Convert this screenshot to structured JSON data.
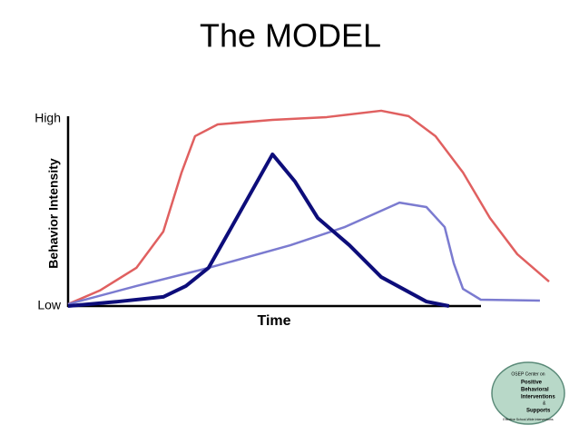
{
  "chart_data": {
    "type": "line",
    "title": "The MODEL",
    "x_label": "Time",
    "y_label": "Behavior Intensity",
    "xlim": [
      0,
      100
    ],
    "ylim": [
      0,
      100
    ],
    "yticks": [
      {
        "value": 0,
        "label": "Low"
      },
      {
        "value": 100,
        "label": "High"
      }
    ],
    "series": [
      {
        "color": "#e06060",
        "x": [
          0,
          6.6,
          14.2,
          19.8,
          23.6,
          26.4,
          31.1,
          42.5,
          53.8,
          65.1,
          70.8,
          76.4,
          82.1,
          87.7,
          93.4,
          100
        ],
        "values": [
          1,
          8.3,
          20.4,
          39.8,
          71.4,
          90.8,
          97.1,
          99.5,
          101,
          104.4,
          101.5,
          90.8,
          71.4,
          47.1,
          27.7,
          13.1
        ]
      },
      {
        "color": "#7b7bd0",
        "x": [
          0,
          14.2,
          29.2,
          46.2,
          57.5,
          65.1,
          68.9,
          74.5,
          78.3,
          80.2,
          82.1,
          85.8,
          98.1
        ],
        "values": [
          1,
          10.7,
          20.4,
          32.5,
          42.2,
          50.9,
          55.3,
          52.9,
          42.2,
          22.8,
          9.2,
          3.4,
          2.9
        ]
      },
      {
        "color": "#0d0d7a",
        "x": [
          0,
          10.4,
          19.8,
          24.5,
          29.2,
          34,
          42.5,
          47.2,
          51.9,
          58.5,
          65.1,
          74.5,
          79.2
        ],
        "values": [
          0,
          2.4,
          4.9,
          10.7,
          20.4,
          42.2,
          81.1,
          66.5,
          47.1,
          32.5,
          15.5,
          2.4,
          0
        ]
      }
    ]
  },
  "logo": {
    "top": "OSEP Center on",
    "lines": [
      "Positive",
      "Behavioral",
      "Interventions",
      "&",
      "Supports"
    ],
    "bottom": "Effective School-Wide Interventions"
  }
}
